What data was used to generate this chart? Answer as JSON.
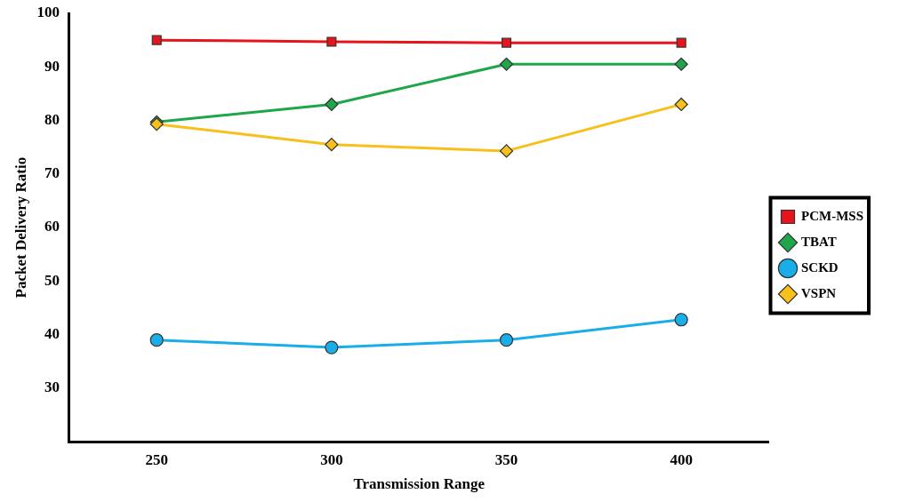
{
  "chart_data": {
    "type": "line",
    "xlabel": "Transmission Range",
    "ylabel": "Packet Delivery Ratio",
    "categories": [
      "250",
      "300",
      "350",
      "400"
    ],
    "ylim": [
      20,
      100
    ],
    "yticks": [
      30,
      40,
      50,
      60,
      70,
      80,
      90,
      100
    ],
    "grid": false,
    "legend": "right",
    "series": [
      {
        "name": "PCM-MSS",
        "color": "#e8141c",
        "marker": "square",
        "values": [
          95,
          94.7,
          94.5,
          94.5
        ]
      },
      {
        "name": "TBAT",
        "color": "#1fa64a",
        "marker": "diamond",
        "values": [
          79.7,
          83,
          90.5,
          90.5
        ]
      },
      {
        "name": "SCKD",
        "color": "#19aee8",
        "marker": "circle",
        "values": [
          39,
          37.6,
          39,
          42.8
        ]
      },
      {
        "name": "VSPN",
        "color": "#f7c01a",
        "marker": "diamond",
        "values": [
          79.3,
          75.5,
          74.3,
          83
        ]
      }
    ]
  }
}
